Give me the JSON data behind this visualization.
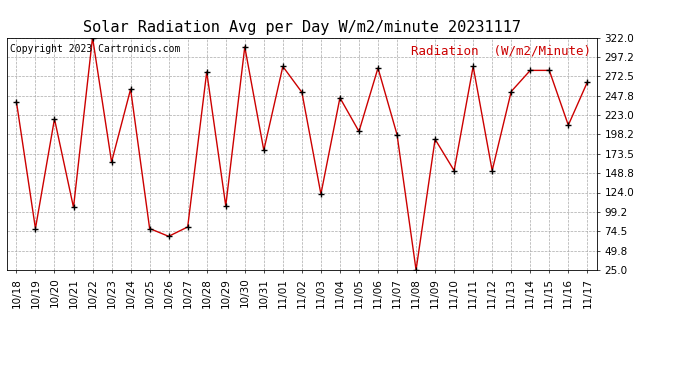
{
  "title": "Solar Radiation Avg per Day W/m2/minute 20231117",
  "copyright": "Copyright 2023 Cartronics.com",
  "legend_label": "Radiation  (W/m2/Minute)",
  "dates": [
    "10/18",
    "10/19",
    "10/20",
    "10/21",
    "10/22",
    "10/23",
    "10/24",
    "10/25",
    "10/26",
    "10/27",
    "10/28",
    "10/29",
    "10/30",
    "10/31",
    "11/01",
    "11/02",
    "11/03",
    "11/04",
    "11/05",
    "11/06",
    "11/07",
    "11/08",
    "11/09",
    "11/10",
    "11/11",
    "11/12",
    "11/13",
    "11/14",
    "11/15",
    "11/16",
    "11/17"
  ],
  "values": [
    240,
    78,
    218,
    105,
    322,
    163,
    256,
    78,
    68,
    80,
    278,
    107,
    310,
    178,
    285,
    252,
    122,
    245,
    202,
    283,
    198,
    25,
    192,
    152,
    285,
    152,
    253,
    280,
    280,
    210,
    265
  ],
  "line_color": "#cc0000",
  "marker": "+",
  "marker_color": "#000000",
  "bg_color": "#ffffff",
  "grid_color": "#aaaaaa",
  "ylim": [
    25.0,
    322.0
  ],
  "yticks": [
    25.0,
    49.8,
    74.5,
    99.2,
    124.0,
    148.8,
    173.5,
    198.2,
    223.0,
    247.8,
    272.5,
    297.2,
    322.0
  ],
  "title_fontsize": 11,
  "copyright_fontsize": 7,
  "legend_fontsize": 9,
  "tick_fontsize": 7.5
}
